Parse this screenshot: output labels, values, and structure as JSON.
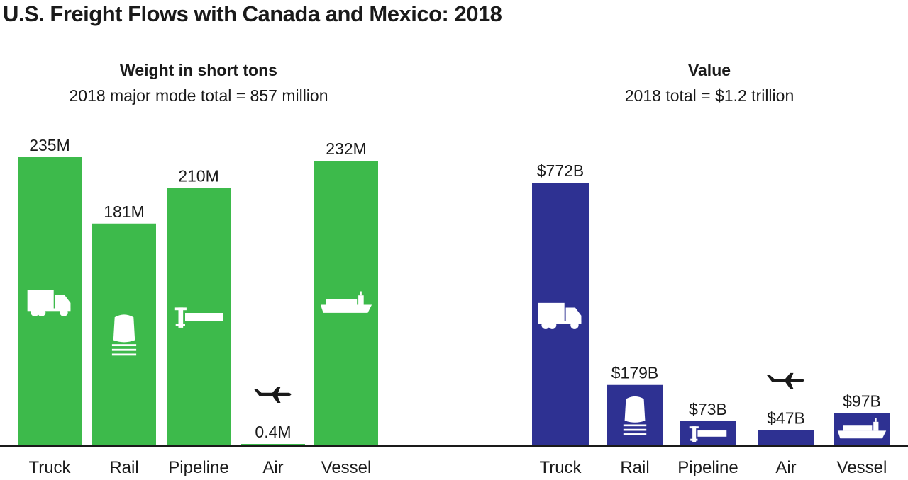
{
  "title": "U.S. Freight Flows with Canada and Mexico: 2018",
  "colors": {
    "weight": "#3dba4b",
    "value": "#2e3192",
    "axis": "#1a1a1a",
    "icon": "#ffffff",
    "icon_outside": "#1a1a1a"
  },
  "chart_data": [
    {
      "type": "bar",
      "title": "Weight in short tons",
      "subtitle": "2018 major mode total = 857 million",
      "unit": "million short tons",
      "categories": [
        "Truck",
        "Rail",
        "Pipeline",
        "Air",
        "Vessel"
      ],
      "values": [
        235,
        181,
        210,
        0.4,
        232
      ],
      "data_labels": [
        "235M",
        "181M",
        "210M",
        "0.4M",
        "232M"
      ],
      "icons": [
        "truck-icon",
        "train-icon",
        "pipeline-icon",
        "airplane-icon",
        "ship-icon"
      ]
    },
    {
      "type": "bar",
      "title": "Value",
      "subtitle": "2018 total = $1.2 trillion",
      "unit": "billion dollars",
      "categories": [
        "Truck",
        "Rail",
        "Pipeline",
        "Air",
        "Vessel"
      ],
      "values": [
        772,
        179,
        73,
        47,
        97
      ],
      "data_labels": [
        "$772B",
        "$179B",
        "$73B",
        "$47B",
        "$97B"
      ],
      "icons": [
        "truck-icon",
        "train-icon",
        "pipeline-icon",
        "airplane-icon",
        "ship-icon"
      ]
    }
  ]
}
